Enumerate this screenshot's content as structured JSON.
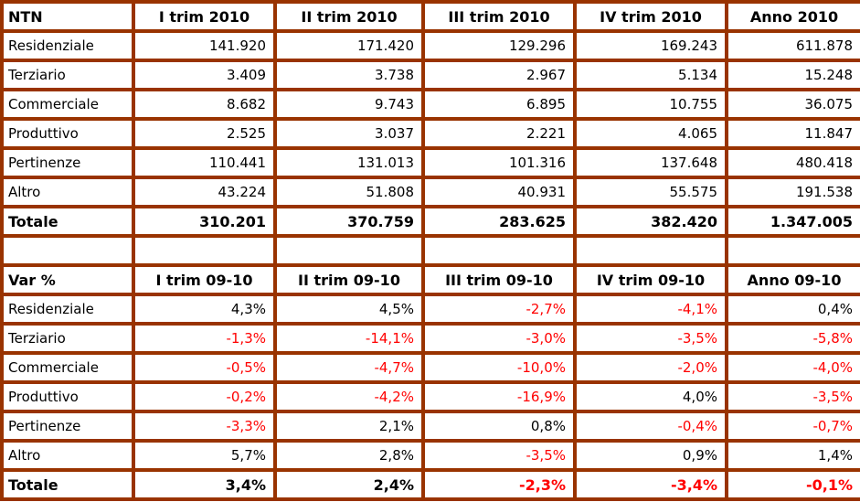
{
  "colors": {
    "border": "#993300",
    "negative_text": "#ff0000",
    "text": "#000000",
    "background": "#ffffff"
  },
  "sections": [
    {
      "name": "ntn-2010",
      "header": [
        "NTN",
        "I trim 2010",
        "II trim 2010",
        "III trim 2010",
        "IV trim 2010",
        "Anno 2010"
      ],
      "rows": [
        [
          "Residenziale",
          "141.920",
          "171.420",
          "129.296",
          "169.243",
          "611.878"
        ],
        [
          "Terziario",
          "3.409",
          "3.738",
          "2.967",
          "5.134",
          "15.248"
        ],
        [
          "Commerciale",
          "8.682",
          "9.743",
          "6.895",
          "10.755",
          "36.075"
        ],
        [
          "Produttivo",
          "2.525",
          "3.037",
          "2.221",
          "4.065",
          "11.847"
        ],
        [
          "Pertinenze",
          "110.441",
          "131.013",
          "101.316",
          "137.648",
          "480.418"
        ],
        [
          "Altro",
          "43.224",
          "51.808",
          "40.931",
          "55.575",
          "191.538"
        ]
      ],
      "total": [
        "Totale",
        "310.201",
        "370.759",
        "283.625",
        "382.420",
        "1.347.005"
      ]
    },
    {
      "name": "var-percent-09-10",
      "header": [
        "Var %",
        "I trim 09-10",
        "II trim 09-10",
        "III trim 09-10",
        "IV trim 09-10",
        "Anno 09-10"
      ],
      "rows": [
        [
          "Residenziale",
          "4,3%",
          "4,5%",
          "-2,7%",
          "-4,1%",
          "0,4%"
        ],
        [
          "Terziario",
          "-1,3%",
          "-14,1%",
          "-3,0%",
          "-3,5%",
          "-5,8%"
        ],
        [
          "Commerciale",
          "-0,5%",
          "-4,7%",
          "-10,0%",
          "-2,0%",
          "-4,0%"
        ],
        [
          "Produttivo",
          "-0,2%",
          "-4,2%",
          "-16,9%",
          "4,0%",
          "-3,5%"
        ],
        [
          "Pertinenze",
          "-3,3%",
          "2,1%",
          "0,8%",
          "-0,4%",
          "-0,7%"
        ],
        [
          "Altro",
          "5,7%",
          "2,8%",
          "-3,5%",
          "0,9%",
          "1,4%"
        ]
      ],
      "total": [
        "Totale",
        "3,4%",
        "2,4%",
        "-2,3%",
        "-3,4%",
        "-0,1%"
      ]
    }
  ]
}
